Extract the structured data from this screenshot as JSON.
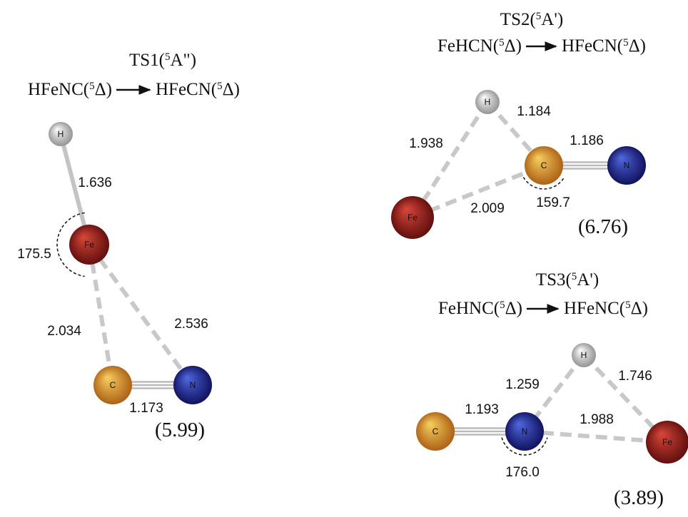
{
  "structures": [
    {
      "title": {
        "name": "TS1(",
        "state": "5",
        "symmetry": "A\")"
      },
      "reaction": {
        "reactant": {
          "name": "HFeNC(",
          "state": "5",
          "term": "Δ)"
        },
        "product": {
          "name": "HFeCN(",
          "state": "5",
          "term": "Δ)"
        }
      },
      "atoms": [
        "H",
        "Fe",
        "C",
        "N"
      ],
      "bond_lengths": [
        "1.636",
        "2.034",
        "2.536",
        "1.173"
      ],
      "angle": "175.5",
      "energy": "(5.99)"
    },
    {
      "title": {
        "name": "TS2(",
        "state": "5",
        "symmetry": "A')"
      },
      "reaction": {
        "reactant": {
          "name": "FeHCN(",
          "state": "5",
          "term": "Δ)"
        },
        "product": {
          "name": "HFeCN(",
          "state": "5",
          "term": "Δ)"
        }
      },
      "atoms": [
        "H",
        "C",
        "N",
        "Fe"
      ],
      "bond_lengths": [
        "1.184",
        "1.938",
        "1.186",
        "2.009"
      ],
      "angle": "159.7",
      "energy": "(6.76)"
    },
    {
      "title": {
        "name": "TS3(",
        "state": "5",
        "symmetry": "A')"
      },
      "reaction": {
        "reactant": {
          "name": "FeHNC(",
          "state": "5",
          "term": "Δ)"
        },
        "product": {
          "name": "HFeNC(",
          "state": "5",
          "term": "Δ)"
        }
      },
      "atoms": [
        "H",
        "N",
        "C",
        "Fe"
      ],
      "bond_lengths": [
        "1.259",
        "1.746",
        "1.193",
        "1.988"
      ],
      "angle": "176.0",
      "energy": "(3.89)"
    }
  ]
}
